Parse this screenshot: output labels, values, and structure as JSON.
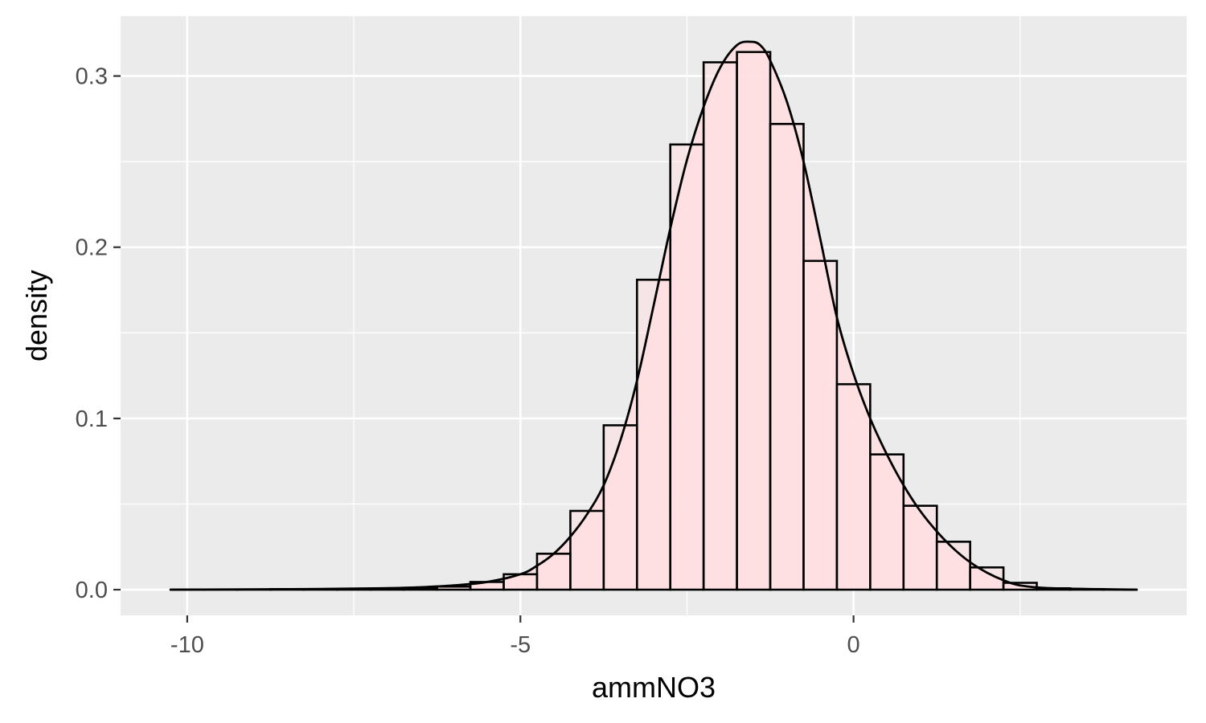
{
  "chart_data": {
    "type": "bar",
    "subtype": "histogram with density curve",
    "xlabel": "ammNO3",
    "ylabel": "density",
    "xlim": [
      -11.0,
      5.0
    ],
    "ylim": [
      -0.015,
      0.335
    ],
    "x_ticks": [
      {
        "value": -10,
        "label": "-10"
      },
      {
        "value": -5,
        "label": "-5"
      },
      {
        "value": 0,
        "label": "0"
      }
    ],
    "y_ticks": [
      {
        "value": 0.0,
        "label": "0.0"
      },
      {
        "value": 0.1,
        "label": "0.1"
      },
      {
        "value": 0.2,
        "label": "0.2"
      },
      {
        "value": 0.3,
        "label": "0.3"
      }
    ],
    "grid": true,
    "legend": "none",
    "bin_width": 0.5,
    "bins": [
      {
        "x0": -10.25,
        "x1": -9.75,
        "density": 0.0
      },
      {
        "x0": -9.75,
        "x1": -9.25,
        "density": 0.0
      },
      {
        "x0": -9.25,
        "x1": -8.75,
        "density": 0.0
      },
      {
        "x0": -8.75,
        "x1": -8.25,
        "density": 0.0003
      },
      {
        "x0": -8.25,
        "x1": -7.75,
        "density": 0.0002
      },
      {
        "x0": -7.75,
        "x1": -7.25,
        "density": 0.0004
      },
      {
        "x0": -7.25,
        "x1": -6.75,
        "density": 0.0006
      },
      {
        "x0": -6.75,
        "x1": -6.25,
        "density": 0.0008
      },
      {
        "x0": -6.25,
        "x1": -5.75,
        "density": 0.0018
      },
      {
        "x0": -5.75,
        "x1": -5.25,
        "density": 0.0045
      },
      {
        "x0": -5.25,
        "x1": -4.75,
        "density": 0.009
      },
      {
        "x0": -4.75,
        "x1": -4.25,
        "density": 0.021
      },
      {
        "x0": -4.25,
        "x1": -3.75,
        "density": 0.046
      },
      {
        "x0": -3.75,
        "x1": -3.25,
        "density": 0.096
      },
      {
        "x0": -3.25,
        "x1": -2.75,
        "density": 0.181
      },
      {
        "x0": -2.75,
        "x1": -2.25,
        "density": 0.26
      },
      {
        "x0": -2.25,
        "x1": -1.75,
        "density": 0.308
      },
      {
        "x0": -1.75,
        "x1": -1.25,
        "density": 0.314
      },
      {
        "x0": -1.25,
        "x1": -0.75,
        "density": 0.272
      },
      {
        "x0": -0.75,
        "x1": -0.25,
        "density": 0.192
      },
      {
        "x0": -0.25,
        "x1": 0.25,
        "density": 0.12
      },
      {
        "x0": 0.25,
        "x1": 0.75,
        "density": 0.079
      },
      {
        "x0": 0.75,
        "x1": 1.25,
        "density": 0.049
      },
      {
        "x0": 1.25,
        "x1": 1.75,
        "density": 0.028
      },
      {
        "x0": 1.75,
        "x1": 2.25,
        "density": 0.013
      },
      {
        "x0": 2.25,
        "x1": 2.75,
        "density": 0.004
      },
      {
        "x0": 2.75,
        "x1": 3.25,
        "density": 0.0008
      },
      {
        "x0": 3.25,
        "x1": 3.75,
        "density": 0.0002
      },
      {
        "x0": 3.75,
        "x1": 4.25,
        "density": 0.0
      }
    ],
    "density_curve": [
      {
        "x": -10.25,
        "y": 0.0
      },
      {
        "x": -8.0,
        "y": 0.0004
      },
      {
        "x": -7.0,
        "y": 0.0009
      },
      {
        "x": -6.5,
        "y": 0.0014
      },
      {
        "x": -6.0,
        "y": 0.0025
      },
      {
        "x": -5.5,
        "y": 0.0045
      },
      {
        "x": -5.0,
        "y": 0.009
      },
      {
        "x": -4.75,
        "y": 0.014
      },
      {
        "x": -4.5,
        "y": 0.021
      },
      {
        "x": -4.25,
        "y": 0.031
      },
      {
        "x": -4.0,
        "y": 0.044
      },
      {
        "x": -3.75,
        "y": 0.061
      },
      {
        "x": -3.5,
        "y": 0.087
      },
      {
        "x": -3.25,
        "y": 0.122
      },
      {
        "x": -3.0,
        "y": 0.166
      },
      {
        "x": -2.75,
        "y": 0.211
      },
      {
        "x": -2.5,
        "y": 0.251
      },
      {
        "x": -2.25,
        "y": 0.282
      },
      {
        "x": -2.0,
        "y": 0.305
      },
      {
        "x": -1.75,
        "y": 0.318
      },
      {
        "x": -1.55,
        "y": 0.32
      },
      {
        "x": -1.4,
        "y": 0.318
      },
      {
        "x": -1.25,
        "y": 0.309
      },
      {
        "x": -1.0,
        "y": 0.285
      },
      {
        "x": -0.75,
        "y": 0.25
      },
      {
        "x": -0.5,
        "y": 0.205
      },
      {
        "x": -0.25,
        "y": 0.159
      },
      {
        "x": 0.0,
        "y": 0.126
      },
      {
        "x": 0.25,
        "y": 0.1
      },
      {
        "x": 0.5,
        "y": 0.079
      },
      {
        "x": 0.75,
        "y": 0.061
      },
      {
        "x": 1.0,
        "y": 0.046
      },
      {
        "x": 1.25,
        "y": 0.034
      },
      {
        "x": 1.5,
        "y": 0.024
      },
      {
        "x": 1.75,
        "y": 0.016
      },
      {
        "x": 2.0,
        "y": 0.01
      },
      {
        "x": 2.25,
        "y": 0.0055
      },
      {
        "x": 2.5,
        "y": 0.0025
      },
      {
        "x": 3.0,
        "y": 0.0008
      },
      {
        "x": 4.25,
        "y": 0.0
      }
    ],
    "colors": {
      "panel_background": "#ebebeb",
      "grid": "#ffffff",
      "bar_fill": "#ffe0e1",
      "bar_outline": "#000000",
      "curve": "#000000",
      "curve_fill": "#ffe0e1",
      "tick_text": "#4d4d4d",
      "title_text": "#000000",
      "tick_mark": "#333333"
    }
  }
}
